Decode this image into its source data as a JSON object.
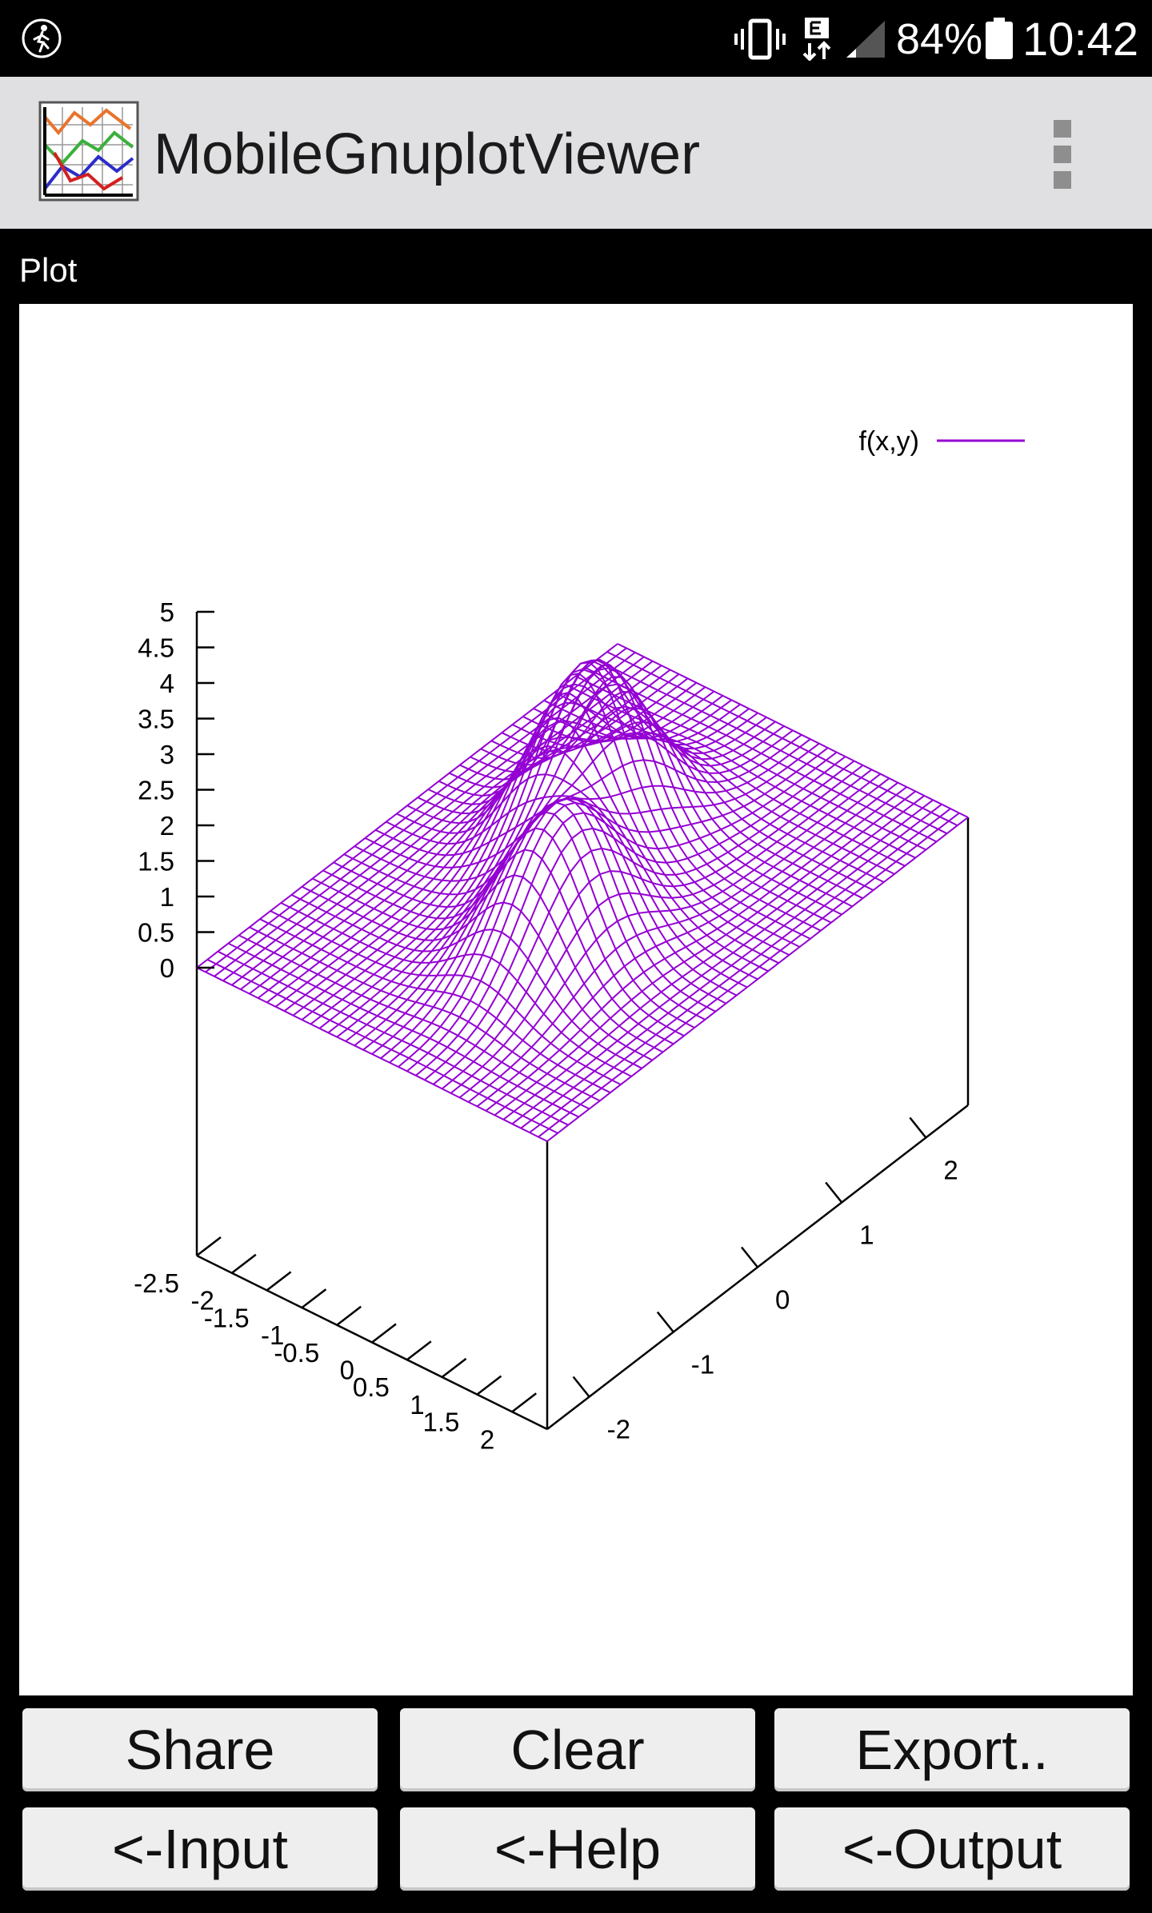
{
  "status_bar": {
    "battery_percent": "84%",
    "time": "10:42",
    "network_type": "E",
    "icons": [
      "accessibility-icon",
      "vibrate-icon",
      "network-e-icon",
      "signal-icon",
      "battery-icon"
    ]
  },
  "app_bar": {
    "title": "MobileGnuplotViewer",
    "icon": "gnuplot-app-icon",
    "menu_icon": "overflow-menu-icon"
  },
  "section": {
    "label": "Plot"
  },
  "plot": {
    "legend": "f(x,y)",
    "colors": {
      "surface": "#9400d3",
      "axes": "#000000",
      "background": "#ffffff"
    },
    "chart_data": {
      "type": "surface",
      "legend": [
        "f(x,y)"
      ],
      "zlabel_ticks": [
        "5",
        "4.5",
        "4",
        "3.5",
        "3",
        "2.5",
        "2",
        "1.5",
        "1",
        "0.5",
        "0"
      ],
      "x_ticks": [
        "-2.5",
        "-2",
        "-1.5",
        "-1",
        "-0.5",
        "0",
        "0.5",
        "1",
        "1.5",
        "2"
      ],
      "y_ticks": [
        "-2",
        "-1",
        "0",
        "1",
        "2"
      ],
      "zlim": [
        0,
        5
      ],
      "xlim": [
        -2.5,
        2.5
      ],
      "ylim": [
        -2.5,
        2.5
      ],
      "grid_lines": 40,
      "peaks": [
        {
          "x": -0.5,
          "y": -0.5,
          "z": 2.5
        },
        {
          "x": 0.5,
          "y": 0.7,
          "z": 2.0
        }
      ]
    }
  },
  "buttons": {
    "share": "Share",
    "clear": "Clear",
    "export": "Export..",
    "input": "<-Input",
    "help": "<-Help",
    "output": "<-Output"
  }
}
